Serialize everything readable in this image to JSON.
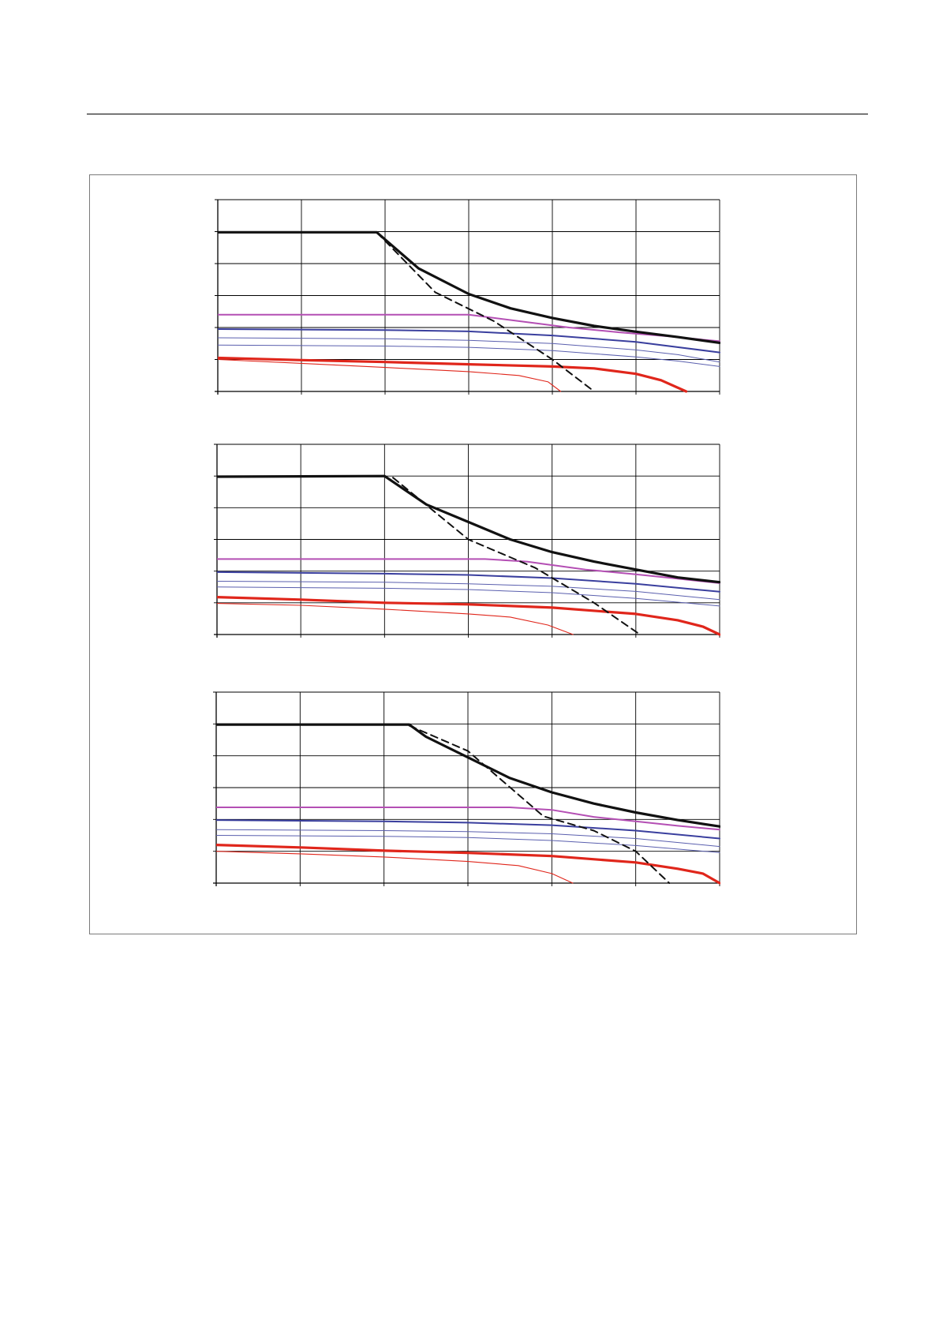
{
  "colors": {
    "frame": "#7a7a7a",
    "grid": "#000000",
    "black_curve": "#111111",
    "magenta_curve": "#b44fb4",
    "blue_curve": "#3a3f9e",
    "blue_thin_curve": "#5a5fae",
    "red_curve": "#e0261b"
  },
  "chart_data": [
    {
      "type": "line",
      "title": "",
      "xlabel": "",
      "ylabel": "",
      "xlim": [
        0,
        6
      ],
      "ylim": [
        0,
        6
      ],
      "grid": true,
      "x_gridlines": 6,
      "y_gridlines": 6,
      "series": [
        {
          "style": "black-thick",
          "x": [
            0,
            1.9,
            2.4,
            3.0,
            3.5,
            4.0,
            4.5,
            5.0,
            5.5,
            6.0
          ],
          "y": [
            4.98,
            4.98,
            3.85,
            3.05,
            2.6,
            2.3,
            2.05,
            1.87,
            1.7,
            1.52
          ]
        },
        {
          "style": "black-dashed",
          "x": [
            1.9,
            2.6,
            3.3,
            4.0,
            4.5
          ],
          "y": [
            4.98,
            3.1,
            2.2,
            1.0,
            0.0
          ]
        },
        {
          "style": "magenta",
          "x": [
            0,
            3.0,
            3.6,
            4.2,
            4.8,
            5.4,
            6.0
          ],
          "y": [
            2.4,
            2.4,
            2.2,
            2.0,
            1.85,
            1.72,
            1.57
          ]
        },
        {
          "style": "blue-thick",
          "x": [
            0,
            2.0,
            3.0,
            4.0,
            5.0,
            6.0
          ],
          "y": [
            1.95,
            1.92,
            1.88,
            1.75,
            1.55,
            1.22
          ]
        },
        {
          "style": "blue-thin",
          "x": [
            0,
            2.0,
            3.0,
            4.0,
            5.0,
            5.5,
            6.0
          ],
          "y": [
            1.68,
            1.65,
            1.6,
            1.5,
            1.3,
            1.15,
            0.92
          ]
        },
        {
          "style": "blue-thin",
          "x": [
            0,
            2.0,
            3.0,
            4.0,
            5.0,
            5.5,
            6.0
          ],
          "y": [
            1.45,
            1.42,
            1.38,
            1.28,
            1.08,
            0.95,
            0.78
          ]
        },
        {
          "style": "red-thick",
          "x": [
            0,
            1.0,
            2.0,
            3.0,
            4.0,
            4.5,
            5.0,
            5.3,
            5.6
          ],
          "y": [
            1.05,
            0.98,
            0.92,
            0.85,
            0.78,
            0.72,
            0.55,
            0.35,
            0.0
          ]
        },
        {
          "style": "red-thin",
          "x": [
            0,
            1.0,
            2.0,
            3.0,
            3.6,
            3.95,
            4.1
          ],
          "y": [
            1.0,
            0.88,
            0.75,
            0.62,
            0.5,
            0.3,
            0.0
          ]
        }
      ]
    },
    {
      "type": "line",
      "title": "",
      "xlabel": "",
      "ylabel": "",
      "xlim": [
        0,
        6
      ],
      "ylim": [
        0,
        6
      ],
      "grid": true,
      "x_gridlines": 6,
      "y_gridlines": 6,
      "series": [
        {
          "style": "black-thick",
          "x": [
            0,
            2.0,
            2.5,
            3.0,
            3.5,
            4.0,
            4.5,
            5.0,
            5.5,
            6.0
          ],
          "y": [
            4.98,
            5.0,
            4.1,
            3.55,
            3.0,
            2.6,
            2.3,
            2.05,
            1.8,
            1.65
          ]
        },
        {
          "style": "black-dashed",
          "x": [
            2.1,
            3.0,
            3.8,
            4.5,
            5.05
          ],
          "y": [
            4.95,
            3.0,
            2.1,
            1.0,
            0.0
          ]
        },
        {
          "style": "magenta",
          "x": [
            0,
            3.2,
            3.7,
            4.4,
            5.0,
            5.5,
            6.0
          ],
          "y": [
            2.38,
            2.38,
            2.3,
            2.05,
            1.9,
            1.76,
            1.62
          ]
        },
        {
          "style": "blue-thick",
          "x": [
            0,
            2.0,
            3.0,
            4.0,
            5.0,
            6.0
          ],
          "y": [
            1.97,
            1.92,
            1.88,
            1.78,
            1.6,
            1.35
          ]
        },
        {
          "style": "blue-thin",
          "x": [
            0,
            2.0,
            3.0,
            4.0,
            5.0,
            6.0
          ],
          "y": [
            1.68,
            1.65,
            1.6,
            1.52,
            1.36,
            1.1
          ]
        },
        {
          "style": "blue-thin",
          "x": [
            0,
            2.0,
            3.0,
            4.0,
            5.0,
            6.0
          ],
          "y": [
            1.5,
            1.46,
            1.42,
            1.32,
            1.14,
            0.9
          ]
        },
        {
          "style": "red-thick",
          "x": [
            0,
            1.0,
            2.0,
            3.0,
            4.0,
            5.0,
            5.5,
            5.8,
            6.0
          ],
          "y": [
            1.18,
            1.1,
            1.0,
            0.95,
            0.85,
            0.65,
            0.45,
            0.25,
            0.0
          ]
        },
        {
          "style": "red-thin",
          "x": [
            0,
            1.0,
            2.0,
            3.0,
            3.5,
            3.95,
            4.25
          ],
          "y": [
            0.98,
            0.92,
            0.8,
            0.65,
            0.55,
            0.3,
            0.0
          ]
        }
      ]
    },
    {
      "type": "line",
      "title": "",
      "xlabel": "",
      "ylabel": "",
      "xlim": [
        0,
        6
      ],
      "ylim": [
        0,
        6
      ],
      "grid": true,
      "x_gridlines": 6,
      "y_gridlines": 6,
      "series": [
        {
          "style": "black-thick",
          "x": [
            0,
            2.3,
            2.5,
            3.0,
            3.5,
            4.0,
            4.5,
            5.0,
            5.5,
            6.0
          ],
          "y": [
            4.98,
            4.98,
            4.6,
            3.95,
            3.3,
            2.85,
            2.5,
            2.22,
            1.98,
            1.78
          ]
        },
        {
          "style": "black-dashed",
          "x": [
            2.3,
            3.0,
            3.9,
            4.5,
            5.0,
            5.4
          ],
          "y": [
            4.95,
            4.15,
            2.1,
            1.65,
            1.0,
            0.0
          ]
        },
        {
          "style": "magenta",
          "x": [
            0,
            3.5,
            4.0,
            4.5,
            5.0,
            5.5,
            6.0
          ],
          "y": [
            2.38,
            2.38,
            2.3,
            2.08,
            1.94,
            1.8,
            1.68
          ]
        },
        {
          "style": "blue-thick",
          "x": [
            0,
            2.0,
            3.0,
            4.0,
            5.0,
            6.0
          ],
          "y": [
            1.98,
            1.94,
            1.9,
            1.82,
            1.65,
            1.4
          ]
        },
        {
          "style": "blue-thin",
          "x": [
            0,
            2.0,
            3.0,
            4.0,
            5.0,
            6.0
          ],
          "y": [
            1.68,
            1.65,
            1.62,
            1.55,
            1.4,
            1.15
          ]
        },
        {
          "style": "blue-thin",
          "x": [
            0,
            2.0,
            3.0,
            4.0,
            5.0,
            6.0
          ],
          "y": [
            1.5,
            1.47,
            1.43,
            1.34,
            1.18,
            0.96
          ]
        },
        {
          "style": "red-thick",
          "x": [
            0,
            1.0,
            2.0,
            3.0,
            4.0,
            5.0,
            5.5,
            5.8,
            6.0
          ],
          "y": [
            1.2,
            1.12,
            1.02,
            0.95,
            0.85,
            0.65,
            0.45,
            0.3,
            0.0
          ]
        },
        {
          "style": "red-thin",
          "x": [
            0,
            1.0,
            2.0,
            3.0,
            3.6,
            4.0,
            4.25
          ],
          "y": [
            1.0,
            0.92,
            0.82,
            0.68,
            0.55,
            0.3,
            0.0
          ]
        }
      ]
    }
  ]
}
